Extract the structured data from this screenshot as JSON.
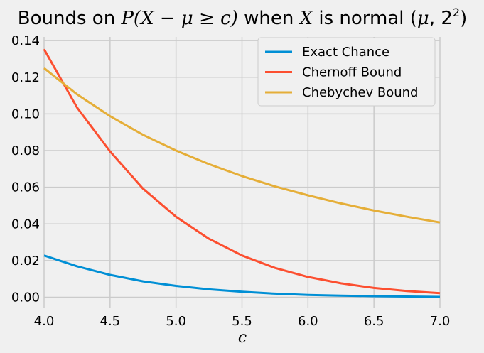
{
  "chart_data": {
    "type": "line",
    "title": "",
    "title_parts": {
      "prefix": "Bounds on ",
      "expr": "P(X − μ ≥ c)",
      "middle": " when ",
      "var": "X",
      "suffix": " is normal (",
      "params": "μ",
      "params2": ", 2",
      "exp": "2",
      "close": ")"
    },
    "xlabel": "c",
    "ylabel": "",
    "xlim": [
      4.0,
      7.0
    ],
    "ylim": [
      -0.006,
      0.142
    ],
    "xticks": [
      "4.0",
      "4.5",
      "5.0",
      "5.5",
      "6.0",
      "6.5",
      "7.0"
    ],
    "yticks": [
      "0.00",
      "0.02",
      "0.04",
      "0.06",
      "0.08",
      "0.10",
      "0.12",
      "0.14"
    ],
    "grid": true,
    "legend_position": "upper-right",
    "x": [
      4.0,
      4.25,
      4.5,
      4.75,
      5.0,
      5.25,
      5.5,
      5.75,
      6.0,
      6.25,
      6.5,
      6.75,
      7.0
    ],
    "series": [
      {
        "name": "Exact Chance",
        "color": "#008fd5",
        "values": [
          0.0228,
          0.0169,
          0.0122,
          0.0087,
          0.0062,
          0.0043,
          0.003,
          0.002,
          0.0013,
          0.0009,
          0.0006,
          0.0004,
          0.0002
        ]
      },
      {
        "name": "Chernoff Bound",
        "color": "#fc4f30",
        "values": [
          0.1353,
          0.1035,
          0.0796,
          0.0592,
          0.0439,
          0.0319,
          0.0228,
          0.016,
          0.0111,
          0.0076,
          0.0051,
          0.0034,
          0.0022
        ]
      },
      {
        "name": "Chebychev Bound",
        "color": "#e5ae38",
        "values": [
          0.125,
          0.1107,
          0.0988,
          0.0886,
          0.08,
          0.0726,
          0.0661,
          0.0605,
          0.0556,
          0.0512,
          0.0473,
          0.0439,
          0.0408
        ]
      }
    ]
  }
}
